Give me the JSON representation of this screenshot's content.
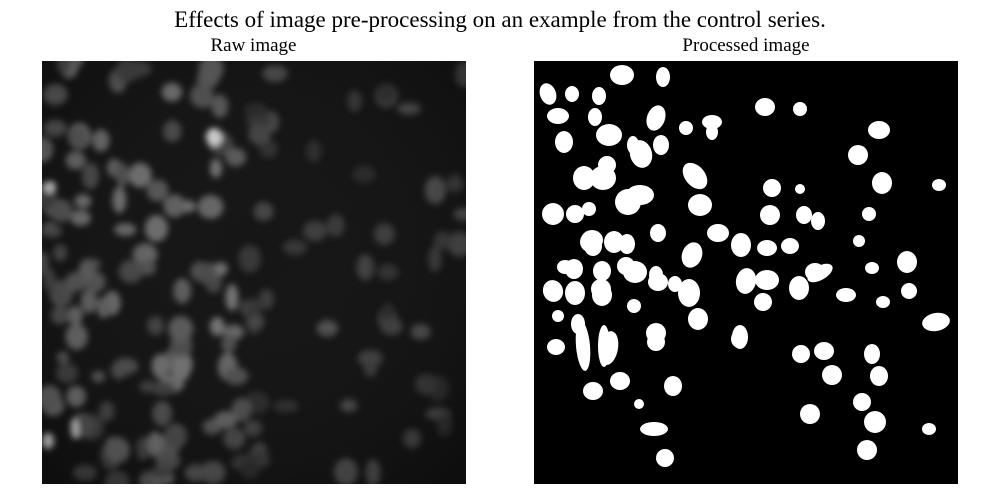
{
  "figure": {
    "title": "Effects of image pre-processing on an example from the control series.",
    "panels": [
      {
        "title": "Raw image"
      },
      {
        "title": "Processed image"
      }
    ]
  },
  "colors": {
    "background": "#ffffff",
    "raw_background": "#141414",
    "processed_background": "#000000",
    "processed_foreground": "#ffffff"
  }
}
